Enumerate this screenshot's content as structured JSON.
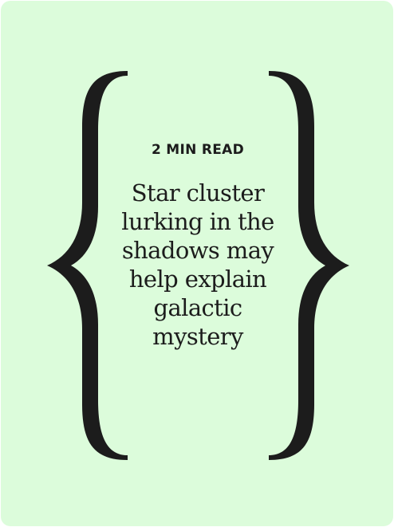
{
  "card": {
    "background": "#dcfcdb",
    "ink_color": "#1c1c1c",
    "read_time": "2 MIN READ",
    "headline_lines": [
      "Star cluster",
      "lurking in the",
      "shadows may",
      "help explain",
      "galactic",
      "mystery"
    ],
    "left_icon": "left-curly-brace",
    "right_icon": "right-curly-brace"
  }
}
